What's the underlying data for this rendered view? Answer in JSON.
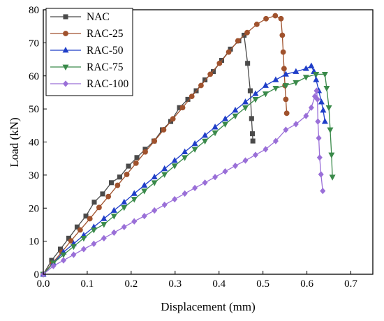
{
  "chart_data": {
    "type": "line",
    "xlabel": "Displacement (mm)",
    "ylabel": "Load (kN)",
    "xlim": [
      0,
      0.75
    ],
    "ylim": [
      0,
      80
    ],
    "x_ticks": [
      "0.0",
      "0.1",
      "0.2",
      "0.3",
      "0.4",
      "0.5",
      "0.6",
      "0.7"
    ],
    "y_ticks": [
      "0",
      "10",
      "20",
      "30",
      "40",
      "50",
      "60",
      "70",
      "80"
    ],
    "grid": false,
    "legend_position": "top-left",
    "series": [
      {
        "name": "NAC",
        "color": "#4a4a4a",
        "marker": "square",
        "points": [
          [
            0,
            0
          ],
          [
            0.019,
            4.2
          ],
          [
            0.039,
            7.6
          ],
          [
            0.058,
            10.9
          ],
          [
            0.077,
            14.3
          ],
          [
            0.097,
            17.6
          ],
          [
            0.116,
            21.8
          ],
          [
            0.135,
            24.3
          ],
          [
            0.155,
            27.7
          ],
          [
            0.174,
            29.4
          ],
          [
            0.194,
            32.7
          ],
          [
            0.213,
            35.3
          ],
          [
            0.232,
            37.8
          ],
          [
            0.252,
            40.3
          ],
          [
            0.271,
            43.7
          ],
          [
            0.29,
            46.2
          ],
          [
            0.31,
            50.4
          ],
          [
            0.329,
            52.9
          ],
          [
            0.348,
            55.5
          ],
          [
            0.368,
            58.8
          ],
          [
            0.387,
            61.3
          ],
          [
            0.406,
            64.7
          ],
          [
            0.426,
            68.1
          ],
          [
            0.445,
            70.6
          ],
          [
            0.457,
            72.3
          ],
          [
            0.465,
            63.8
          ],
          [
            0.471,
            55.5
          ],
          [
            0.474,
            47.1
          ],
          [
            0.476,
            42.5
          ],
          [
            0.477,
            40.3
          ]
        ]
      },
      {
        "name": "RAC-25",
        "color": "#a0522d",
        "marker": "circle",
        "points": [
          [
            0,
            0
          ],
          [
            0.021,
            3.4
          ],
          [
            0.042,
            6.7
          ],
          [
            0.063,
            10.1
          ],
          [
            0.084,
            13.4
          ],
          [
            0.106,
            16.8
          ],
          [
            0.127,
            20.2
          ],
          [
            0.148,
            23.5
          ],
          [
            0.169,
            26.9
          ],
          [
            0.19,
            30.2
          ],
          [
            0.211,
            33.6
          ],
          [
            0.232,
            37.0
          ],
          [
            0.253,
            40.3
          ],
          [
            0.274,
            43.7
          ],
          [
            0.295,
            47.0
          ],
          [
            0.317,
            50.4
          ],
          [
            0.338,
            53.8
          ],
          [
            0.359,
            57.1
          ],
          [
            0.38,
            60.5
          ],
          [
            0.401,
            63.8
          ],
          [
            0.422,
            67.2
          ],
          [
            0.443,
            70.6
          ],
          [
            0.464,
            73.1
          ],
          [
            0.486,
            75.6
          ],
          [
            0.507,
            77.3
          ],
          [
            0.528,
            78.2
          ],
          [
            0.541,
            77.3
          ],
          [
            0.544,
            72.3
          ],
          [
            0.546,
            67.2
          ],
          [
            0.548,
            62.2
          ],
          [
            0.55,
            57.1
          ],
          [
            0.552,
            52.9
          ],
          [
            0.554,
            48.7
          ]
        ]
      },
      {
        "name": "RAC-50",
        "color": "#1f3ec8",
        "marker": "triangle-up",
        "points": [
          [
            0,
            0
          ],
          [
            0.023,
            3.4
          ],
          [
            0.046,
            6.7
          ],
          [
            0.069,
            9.2
          ],
          [
            0.092,
            11.8
          ],
          [
            0.115,
            14.3
          ],
          [
            0.138,
            16.8
          ],
          [
            0.161,
            19.3
          ],
          [
            0.184,
            21.8
          ],
          [
            0.207,
            24.4
          ],
          [
            0.23,
            26.9
          ],
          [
            0.253,
            29.4
          ],
          [
            0.276,
            31.9
          ],
          [
            0.299,
            34.4
          ],
          [
            0.322,
            37.0
          ],
          [
            0.345,
            39.5
          ],
          [
            0.368,
            42.0
          ],
          [
            0.391,
            44.5
          ],
          [
            0.414,
            47.0
          ],
          [
            0.437,
            49.6
          ],
          [
            0.46,
            52.1
          ],
          [
            0.483,
            54.6
          ],
          [
            0.506,
            57.1
          ],
          [
            0.529,
            58.8
          ],
          [
            0.552,
            60.5
          ],
          [
            0.575,
            61.3
          ],
          [
            0.598,
            62.2
          ],
          [
            0.61,
            63.0
          ],
          [
            0.616,
            61.3
          ],
          [
            0.621,
            58.8
          ],
          [
            0.627,
            55.5
          ],
          [
            0.633,
            52.1
          ],
          [
            0.637,
            49.6
          ],
          [
            0.641,
            46.2
          ]
        ]
      },
      {
        "name": "RAC-75",
        "color": "#3a8a4a",
        "marker": "triangle-down",
        "points": [
          [
            0,
            0
          ],
          [
            0.023,
            3.4
          ],
          [
            0.046,
            5.9
          ],
          [
            0.069,
            8.4
          ],
          [
            0.092,
            10.9
          ],
          [
            0.115,
            13.4
          ],
          [
            0.138,
            15.1
          ],
          [
            0.161,
            17.6
          ],
          [
            0.184,
            20.2
          ],
          [
            0.207,
            22.7
          ],
          [
            0.23,
            25.2
          ],
          [
            0.253,
            27.7
          ],
          [
            0.276,
            30.2
          ],
          [
            0.299,
            32.8
          ],
          [
            0.322,
            35.3
          ],
          [
            0.345,
            37.8
          ],
          [
            0.368,
            40.3
          ],
          [
            0.391,
            42.8
          ],
          [
            0.414,
            45.4
          ],
          [
            0.437,
            47.9
          ],
          [
            0.46,
            50.4
          ],
          [
            0.483,
            52.9
          ],
          [
            0.506,
            54.6
          ],
          [
            0.529,
            56.3
          ],
          [
            0.552,
            57.1
          ],
          [
            0.575,
            58.0
          ],
          [
            0.598,
            59.6
          ],
          [
            0.621,
            60.5
          ],
          [
            0.641,
            60.5
          ],
          [
            0.645,
            56.3
          ],
          [
            0.65,
            50.4
          ],
          [
            0.653,
            43.7
          ],
          [
            0.656,
            36.1
          ],
          [
            0.658,
            29.4
          ]
        ]
      },
      {
        "name": "RAC-100",
        "color": "#9a6fd8",
        "marker": "diamond",
        "points": [
          [
            0,
            0
          ],
          [
            0.023,
            2.5
          ],
          [
            0.046,
            4.2
          ],
          [
            0.069,
            5.9
          ],
          [
            0.092,
            7.6
          ],
          [
            0.115,
            9.2
          ],
          [
            0.138,
            10.9
          ],
          [
            0.161,
            12.6
          ],
          [
            0.184,
            14.3
          ],
          [
            0.207,
            16.0
          ],
          [
            0.23,
            17.6
          ],
          [
            0.253,
            19.3
          ],
          [
            0.276,
            21.0
          ],
          [
            0.299,
            22.7
          ],
          [
            0.322,
            24.4
          ],
          [
            0.345,
            26.1
          ],
          [
            0.368,
            27.7
          ],
          [
            0.391,
            29.4
          ],
          [
            0.414,
            31.1
          ],
          [
            0.437,
            32.8
          ],
          [
            0.46,
            34.4
          ],
          [
            0.483,
            36.1
          ],
          [
            0.506,
            37.8
          ],
          [
            0.529,
            40.3
          ],
          [
            0.552,
            43.7
          ],
          [
            0.575,
            45.4
          ],
          [
            0.598,
            47.9
          ],
          [
            0.61,
            50.4
          ],
          [
            0.618,
            53.8
          ],
          [
            0.622,
            55.5
          ],
          [
            0.624,
            52.9
          ],
          [
            0.625,
            46.2
          ],
          [
            0.627,
            41.2
          ],
          [
            0.629,
            35.3
          ],
          [
            0.632,
            30.2
          ],
          [
            0.636,
            25.2
          ]
        ]
      }
    ]
  }
}
